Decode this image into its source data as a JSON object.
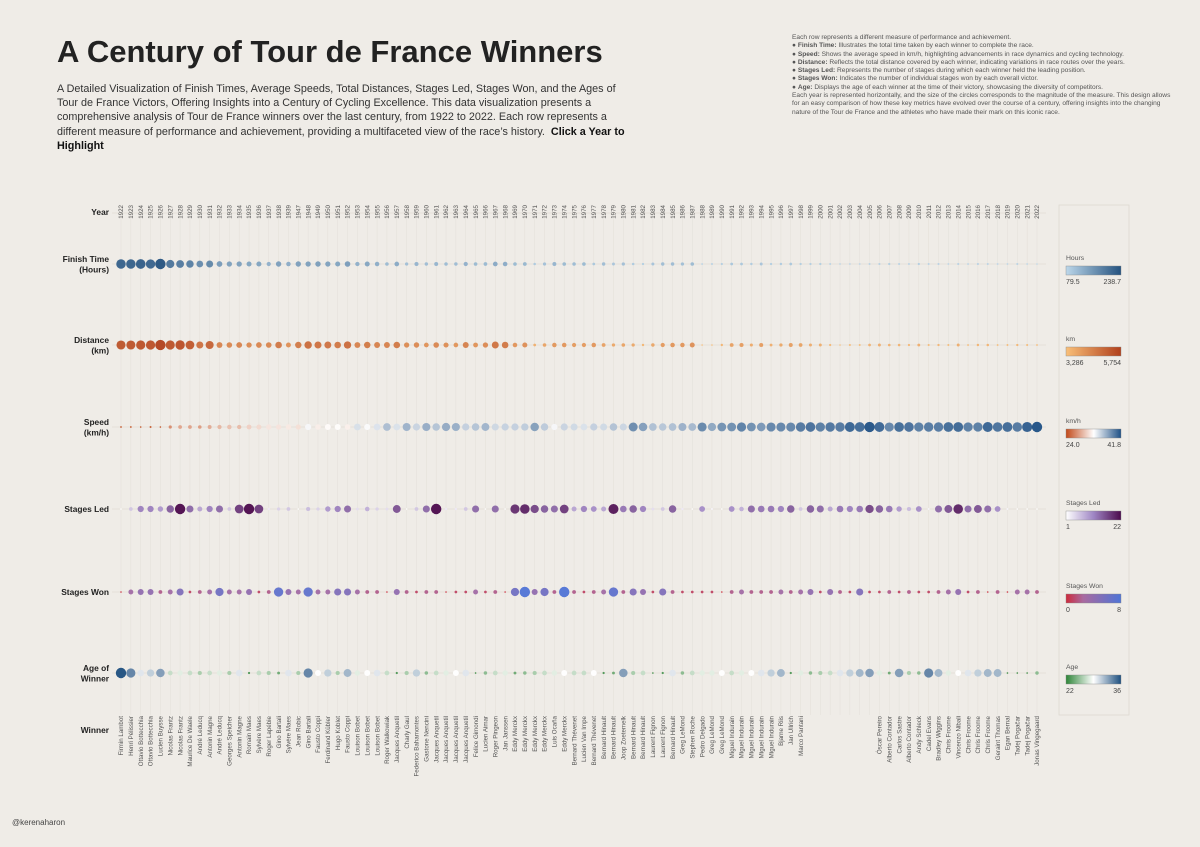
{
  "header": {
    "title": "A Century of Tour de France Winners",
    "subtitle": "A Detailed Visualization of Finish Times, Average Speeds, Total Distances, Stages Led, Stages Won, and the Ages of Tour de France Victors, Offering Insights into a Century of Cycling Excellence. This data visualization presents a comprehensive analysis of Tour de France winners over the last century, from 1922 to 2022. Each row represents a different measure of performance and achievement, providing a multifaceted view of the race’s history.",
    "cta": "Click a Year to Highlight"
  },
  "notes": {
    "intro": "Each row represents a different measure of performance and achievement.",
    "items": [
      {
        "term": "Finish Time:",
        "text": "Illustrates the total time taken by each winner to complete the race."
      },
      {
        "term": "Speed:",
        "text": "Shows the average speed in km/h, highlighting advancements in race dynamics and cycling technology."
      },
      {
        "term": "Distance:",
        "text": "Reflects the total distance covered by each winner, indicating variations in race routes over the years."
      },
      {
        "term": "Stages Led:",
        "text": "Represents the number of stages during which each winner held the leading position."
      },
      {
        "term": "Stages Won:",
        "text": "Indicates the number of individual stages won by each overall victor."
      },
      {
        "term": "Age:",
        "text": "Displays the age of each winner at the time of their victory, showcasing the diversity of competitors."
      }
    ],
    "outro": "Each year is represented horizontally, and the size of the circles corresponds to the magnitude of the measure. This design allows for an easy comparison of how these key metrics have evolved over the course of a century, offering insights into the changing nature of the Tour de France and the athletes who have made their mark on this iconic race."
  },
  "credit": "@kerenaharon",
  "chart_data": {
    "type": "scatter",
    "title": "A Century of Tour de France Winners",
    "row_labels": {
      "year": "Year",
      "winner": "Winner"
    },
    "years": [
      1922,
      1923,
      1924,
      1925,
      1926,
      1927,
      1928,
      1929,
      1930,
      1931,
      1932,
      1933,
      1934,
      1935,
      1936,
      1937,
      1938,
      1939,
      1947,
      1948,
      1949,
      1950,
      1951,
      1952,
      1953,
      1954,
      1955,
      1956,
      1957,
      1958,
      1959,
      1960,
      1961,
      1962,
      1963,
      1964,
      1965,
      1966,
      1967,
      1968,
      1969,
      1970,
      1971,
      1972,
      1973,
      1974,
      1975,
      1976,
      1977,
      1978,
      1979,
      1980,
      1981,
      1982,
      1983,
      1984,
      1985,
      1986,
      1987,
      1988,
      1989,
      1990,
      1991,
      1992,
      1993,
      1994,
      1995,
      1996,
      1997,
      1998,
      1999,
      2000,
      2001,
      2002,
      2003,
      2004,
      2005,
      2006,
      2007,
      2008,
      2009,
      2010,
      2011,
      2012,
      2013,
      2014,
      2015,
      2016,
      2017,
      2018,
      2019,
      2020,
      2021,
      2022
    ],
    "winners": [
      "Firmin Lambot",
      "Henri Pélissier",
      "Ottavio Bottecchia",
      "Ottavio Bottecchia",
      "Lucien Buysse",
      "Nicolas Frantz",
      "Nicolas Frantz",
      "Maurice De Waele",
      "André Leducq",
      "Antonin Magne",
      "André Leducq",
      "Georges Speicher",
      "Antonin Magne",
      "Romain Maes",
      "Sylvère Maes",
      "Roger Lapébie",
      "Gino Bartali",
      "Sylvère Maes",
      "Jean Robic",
      "Gino Bartali",
      "Fausto Coppi",
      "Ferdinand Kübler",
      "Hugo Koblet",
      "Fausto Coppi",
      "Louison Bobet",
      "Louison Bobet",
      "Louison Bobet",
      "Roger Walkowiak",
      "Jacques Anquetil",
      "Charly Gaul",
      "Federico Bahamontes",
      "Gastone Nencini",
      "Jacques Anquetil",
      "Jacques Anquetil",
      "Jacques Anquetil",
      "Jacques Anquetil",
      "Felice Gimondi",
      "Lucien Aimar",
      "Roger Pingeon",
      "Jan Janssen",
      "Eddy Merckx",
      "Eddy Merckx",
      "Eddy Merckx",
      "Eddy Merckx",
      "Luis Ocaña",
      "Eddy Merckx",
      "Bernard Thévenet",
      "Lucien Van Impe",
      "Bernard Thévenet",
      "Bernard Hinault",
      "Bernard Hinault",
      "Joop Zoetemelk",
      "Bernard Hinault",
      "Bernard Hinault",
      "Laurent Fignon",
      "Laurent Fignon",
      "Bernard Hinault",
      "Greg LeMond",
      "Stephen Roche",
      "Pedro Delgado",
      "Greg LeMond",
      "Greg LeMond",
      "Miguel Indurain",
      "Miguel Indurain",
      "Miguel Indurain",
      "Miguel Indurain",
      "Miguel Indurain",
      "Bjarne Riis",
      "Jan Ullrich",
      "Marco Pantani",
      "",
      "",
      "",
      "",
      "",
      "",
      "",
      "Óscar Pereiro",
      "Alberto Contador",
      "Carlos Sastre",
      "Alberto Contador",
      "Andy Schleck",
      "Cadel Evans",
      "Bradley Wiggins",
      "Chris Froome",
      "Vincenzo Nibali",
      "Chris Froome",
      "Chris Froome",
      "Chris Froome",
      "Geraint Thomas",
      "Egan Bernal",
      "Tadej Pogačar",
      "Tadej Pogačar",
      "Jonas Vingegaard"
    ],
    "series": [
      {
        "name": "Finish Time (Hours)",
        "label": "Finish Time\n(Hours)",
        "unit": "Hours",
        "min": 79.5,
        "max": 238.7,
        "min_label": "79.5",
        "max_label": "238.7",
        "colors": [
          "#bcd7ea",
          "#24527f"
        ],
        "values": [
          222,
          222,
          226,
          219,
          238.7,
          198,
          192,
          186,
          172,
          177,
          154,
          147,
          147,
          141,
          142,
          127,
          148,
          132,
          148,
          147,
          149,
          145,
          142,
          151,
          129,
          140,
          131,
          115,
          135,
          110,
          124,
          112,
          122,
          114,
          113,
          127,
          116,
          117,
          136,
          133,
          116,
          119,
          96,
          108,
          122,
          116,
          114,
          116,
          100,
          112,
          103,
          109,
          96,
          92,
          105,
          112,
          113,
          110,
          115,
          84,
          87,
          90,
          101,
          100,
          95,
          103,
          92,
          95,
          100,
          92,
          91,
          92,
          86,
          82,
          83,
          83,
          86,
          89,
          91,
          87,
          85,
          91,
          86,
          87,
          83,
          89,
          84,
          89,
          86,
          83,
          82,
          87,
          82,
          79.5
        ]
      },
      {
        "name": "Distance (km)",
        "label": "Distance\n(km)",
        "unit": "km",
        "min": 3286,
        "max": 5754,
        "min_label": "3,286",
        "max_label": "5,754",
        "colors": [
          "#f9bf78",
          "#b1401c"
        ],
        "values": [
          5375,
          5386,
          5425,
          5440,
          5745,
          5398,
          5476,
          5286,
          4818,
          5091,
          4479,
          4395,
          4470,
          4338,
          4418,
          4415,
          4694,
          4225,
          4640,
          4922,
          4808,
          4773,
          4690,
          4898,
          4476,
          4656,
          4495,
          4498,
          4669,
          4319,
          4358,
          4173,
          4397,
          4274,
          4138,
          4504,
          4188,
          4329,
          4779,
          4684,
          4117,
          4254,
          3608,
          3846,
          4090,
          4098,
          4000,
          4017,
          4096,
          3908,
          3765,
          3842,
          3753,
          3507,
          3809,
          4021,
          4109,
          4094,
          4231,
          3286,
          3285,
          3504,
          3914,
          3983,
          3714,
          3978,
          3635,
          3765,
          3950,
          3875,
          3687,
          3662,
          3458,
          3277,
          3427,
          3391,
          3593,
          3657,
          3570,
          3554,
          3459,
          3642,
          3430,
          3497,
          3404,
          3660,
          3360,
          3529,
          3540,
          3351,
          3365,
          3484,
          3414,
          3349
        ]
      },
      {
        "name": "Speed (km/h)",
        "label": "Speed\n(km/h)",
        "unit": "km/h",
        "min": 24.0,
        "max": 41.8,
        "min_label": "24.0",
        "max_label": "41.8",
        "colors": [
          "#c24a1a",
          "#ffffff",
          "#1e5085"
        ],
        "mid": 33,
        "values": [
          24.2,
          24.4,
          24.0,
          24.8,
          24.0,
          27.2,
          28.4,
          28.3,
          28.0,
          28.7,
          29.3,
          29.8,
          29.5,
          30.6,
          31.1,
          31.7,
          31.6,
          31.9,
          31.4,
          33.4,
          32.1,
          32.8,
          32.9,
          32.2,
          34.6,
          33.2,
          34.4,
          36.3,
          34.5,
          36.9,
          35.2,
          37.2,
          36.0,
          37.3,
          37.1,
          35.4,
          36.0,
          36.8,
          35.0,
          35.3,
          35.4,
          35.6,
          37.9,
          35.7,
          33.4,
          35.2,
          34.9,
          34.5,
          35.4,
          34.9,
          36.1,
          35.1,
          38.9,
          38.0,
          36.2,
          35.9,
          36.2,
          37.0,
          36.6,
          39.1,
          37.5,
          38.6,
          38.7,
          39.5,
          38.7,
          38.3,
          39.2,
          39.2,
          39.2,
          39.9,
          40.3,
          39.6,
          40.0,
          39.9,
          40.9,
          40.6,
          41.7,
          40.8,
          39.2,
          40.5,
          40.3,
          39.6,
          39.8,
          39.8,
          40.5,
          40.7,
          39.6,
          39.6,
          40.9,
          40.2,
          40.6,
          39.9,
          41.2,
          41.8
        ]
      },
      {
        "name": "Stages Led",
        "label": "Stages Led",
        "unit": "Stages Led",
        "min": 1,
        "max": 22,
        "min_label": "1",
        "max_label": "22",
        "colors": [
          "#ffffff",
          "#9f86c4",
          "#4b0a4c"
        ],
        "values": [
          1,
          6,
          12,
          12,
          10,
          15,
          22,
          14,
          9,
          12,
          14,
          6,
          18,
          22,
          18,
          3,
          5,
          6,
          1,
          7,
          5,
          10,
          12,
          14,
          4,
          8,
          5,
          4,
          16,
          1,
          6,
          14,
          22,
          3,
          3,
          6,
          14,
          1,
          14,
          1,
          19,
          20,
          17,
          15,
          14,
          18,
          9,
          12,
          11,
          9,
          21,
          13,
          15,
          12,
          4,
          6,
          15,
          3,
          1,
          11,
          2,
          1,
          11,
          8,
          14,
          13,
          13,
          12,
          15,
          6,
          15,
          14,
          9,
          13,
          12,
          13,
          17,
          15,
          13,
          10,
          7,
          11,
          2,
          14,
          16,
          20,
          14,
          16,
          14,
          11,
          2,
          1,
          1,
          1
        ]
      },
      {
        "name": "Stages Won",
        "label": "Stages Won",
        "unit": "Stages Won",
        "min": 0,
        "max": 8,
        "min_label": "0",
        "max_label": "8",
        "colors": [
          "#cd2b3c",
          "#a96aa0",
          "#4f74d6"
        ],
        "mid": 2.5,
        "values": [
          0,
          3,
          4,
          4,
          2,
          3,
          5,
          1,
          2,
          3,
          6,
          3,
          3,
          4,
          1,
          2,
          7,
          4,
          3,
          7,
          3,
          3,
          5,
          5,
          3,
          2,
          2,
          0,
          4,
          2,
          1,
          2,
          2,
          0,
          1,
          1,
          3,
          1,
          2,
          0,
          6,
          8,
          4,
          6,
          2,
          8,
          2,
          1,
          2,
          3,
          7,
          2,
          5,
          4,
          1,
          5,
          2,
          1,
          1,
          1,
          1,
          0,
          2,
          3,
          2,
          2,
          2,
          3,
          2,
          3,
          4,
          1,
          4,
          2,
          1,
          5,
          1,
          1,
          2,
          1,
          2,
          1,
          1,
          2,
          3,
          4,
          1,
          2,
          0,
          2,
          0,
          3,
          3,
          2
        ]
      },
      {
        "name": "Age of Winner",
        "label": "Age of\nWinner",
        "unit": "Age",
        "min": 22,
        "max": 36,
        "min_label": "22",
        "max_label": "36",
        "colors": [
          "#2e8538",
          "#ffffff",
          "#1d4f7f"
        ],
        "mid": 29,
        "values": [
          36,
          34,
          30,
          31,
          33,
          27,
          28,
          27,
          26,
          27,
          28,
          26,
          30,
          23,
          27,
          26,
          24,
          30,
          26,
          34,
          29,
          31,
          26,
          32,
          28,
          29,
          30,
          27,
          23,
          26,
          31,
          25,
          27,
          28,
          29,
          30,
          22,
          25,
          27,
          28,
          24,
          25,
          26,
          27,
          28,
          29,
          27,
          27,
          29,
          23,
          24,
          33,
          26,
          27,
          22,
          23,
          30,
          25,
          27,
          28,
          28,
          29,
          27,
          28,
          29,
          30,
          31,
          32,
          23,
          28,
          25,
          26,
          27,
          30,
          31,
          32,
          33,
          28,
          24,
          33,
          26,
          25,
          34,
          32,
          28,
          29,
          30,
          31,
          32,
          32,
          22,
          21,
          22,
          25
        ]
      }
    ]
  }
}
